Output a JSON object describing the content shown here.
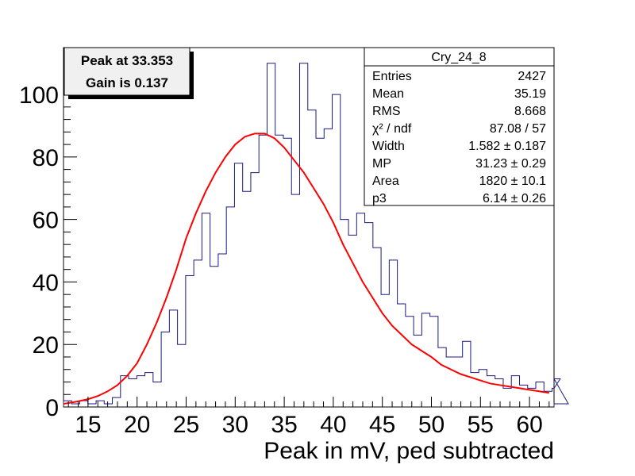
{
  "chart_data": {
    "type": "bar",
    "style": "step-histogram",
    "xlabel": "Peak in mV, ped subtracted",
    "ylabel": "",
    "xlim": [
      12.5,
      62.5
    ],
    "ylim": [
      0,
      115
    ],
    "x_ticks": [
      15,
      20,
      25,
      30,
      35,
      40,
      45,
      50,
      55,
      60
    ],
    "y_ticks": [
      0,
      20,
      40,
      60,
      80,
      100
    ],
    "bin_width": 0.83,
    "bin_edges_start": 12.5,
    "histogram_values": [
      2,
      1,
      2,
      1,
      2,
      1,
      3,
      10,
      9,
      10,
      11,
      8,
      24,
      31,
      20,
      42,
      47,
      62,
      45,
      49,
      64,
      78,
      69,
      75,
      87,
      110,
      87,
      86,
      68,
      110,
      95,
      86,
      89,
      100,
      60,
      55,
      62,
      59,
      51,
      36,
      47,
      33,
      29,
      23,
      30,
      29,
      19,
      16,
      16,
      21,
      11,
      12,
      10,
      9,
      6,
      10,
      7,
      6,
      8,
      5,
      6,
      9,
      1
    ],
    "histogram_color": "#1a1a80",
    "fit_color": "#ff0000",
    "fit_curve": {
      "x": [
        12.5,
        14,
        15,
        16,
        17,
        18,
        19,
        20,
        21,
        22,
        23,
        24,
        25,
        26,
        27,
        28,
        29,
        30,
        31,
        32,
        33,
        34,
        35,
        36,
        37,
        38,
        39,
        40,
        41,
        42,
        43,
        44,
        45,
        46,
        47,
        48,
        49,
        50,
        51,
        52,
        53,
        54,
        55,
        56,
        57,
        58,
        59,
        60,
        61,
        62
      ],
      "y": [
        1,
        1.8,
        2.5,
        3.5,
        5,
        7,
        10,
        14,
        20,
        27,
        35,
        44,
        54,
        62,
        69,
        75,
        80,
        84,
        86.5,
        87.5,
        87.5,
        86,
        83,
        79,
        75,
        70,
        65,
        59,
        52,
        46,
        40,
        35,
        30,
        26,
        23,
        20,
        18,
        16,
        13.5,
        12,
        10.5,
        9.5,
        8.5,
        7.5,
        7,
        6.5,
        6,
        5.5,
        5,
        4.5
      ]
    },
    "stats": {
      "title": "Cry_24_8",
      "rows": [
        {
          "label": "Entries",
          "value": "2427"
        },
        {
          "label": "Mean",
          "value": "35.19"
        },
        {
          "label": "RMS",
          "value": "8.668"
        },
        {
          "label": "χ² / ndf",
          "value": "87.08 / 57"
        },
        {
          "label": "Width",
          "value": "1.582 ± 0.187"
        },
        {
          "label": "MP",
          "value": "31.23 ± 0.29"
        },
        {
          "label": "Area",
          "value": "1820 ± 10.1"
        },
        {
          "label": "p3",
          "value": "6.14 ± 0.26"
        }
      ]
    },
    "annotation": {
      "line1": "Peak at 33.353",
      "line2": "Gain is 0.137"
    }
  }
}
